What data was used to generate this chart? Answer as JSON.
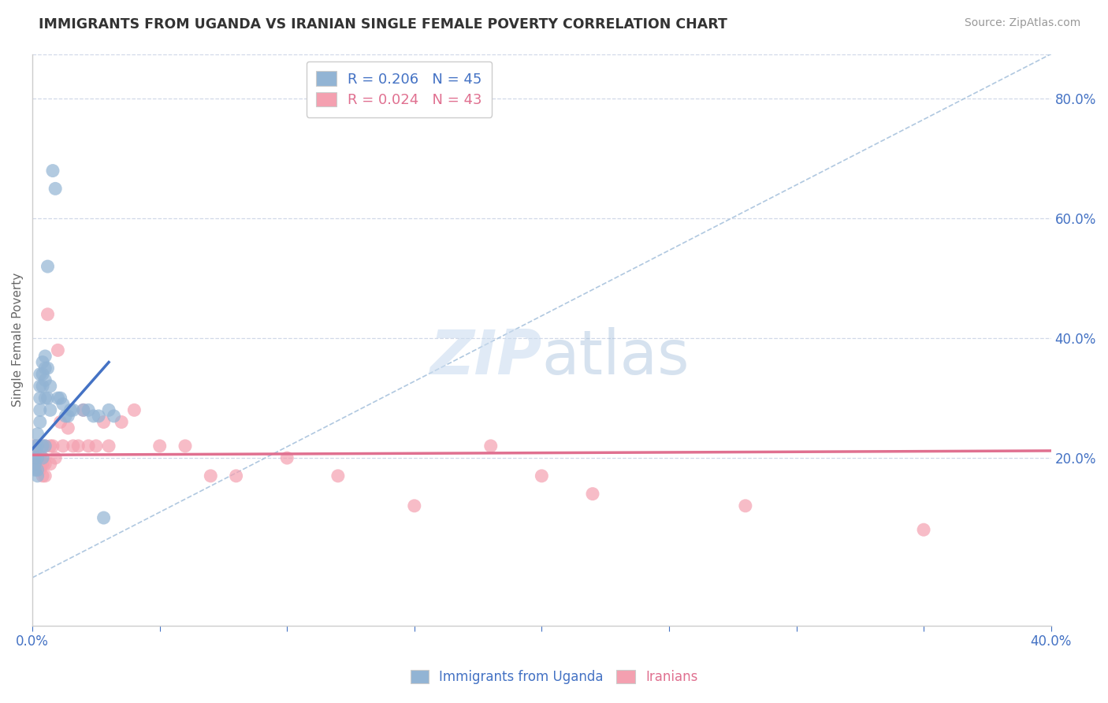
{
  "title": "IMMIGRANTS FROM UGANDA VS IRANIAN SINGLE FEMALE POVERTY CORRELATION CHART",
  "source": "Source: ZipAtlas.com",
  "ylabel": "Single Female Poverty",
  "legend_blue_label": "R = 0.206   N = 45",
  "legend_pink_label": "R = 0.024   N = 43",
  "blue_color": "#92b4d4",
  "pink_color": "#f4a0b0",
  "blue_line_color": "#4472c4",
  "pink_line_color": "#e07090",
  "dashed_line_color": "#b0c8e0",
  "legend_x_label": "Immigrants from Uganda",
  "legend_p_label": "Iranians",
  "blue_scatter_x": [
    0.001,
    0.001,
    0.001,
    0.001,
    0.002,
    0.002,
    0.002,
    0.002,
    0.002,
    0.003,
    0.003,
    0.003,
    0.003,
    0.003,
    0.004,
    0.004,
    0.004,
    0.004,
    0.004,
    0.005,
    0.005,
    0.005,
    0.005,
    0.005,
    0.006,
    0.006,
    0.006,
    0.007,
    0.007,
    0.008,
    0.009,
    0.01,
    0.011,
    0.012,
    0.013,
    0.014,
    0.015,
    0.016,
    0.02,
    0.022,
    0.024,
    0.026,
    0.028,
    0.03,
    0.032
  ],
  "blue_scatter_y": [
    0.22,
    0.2,
    0.19,
    0.18,
    0.24,
    0.22,
    0.2,
    0.18,
    0.17,
    0.34,
    0.32,
    0.3,
    0.28,
    0.26,
    0.36,
    0.34,
    0.32,
    0.22,
    0.2,
    0.37,
    0.35,
    0.33,
    0.3,
    0.22,
    0.52,
    0.35,
    0.3,
    0.32,
    0.28,
    0.68,
    0.65,
    0.3,
    0.3,
    0.29,
    0.27,
    0.27,
    0.28,
    0.28,
    0.28,
    0.28,
    0.27,
    0.27,
    0.1,
    0.28,
    0.27
  ],
  "pink_scatter_x": [
    0.001,
    0.001,
    0.002,
    0.002,
    0.003,
    0.003,
    0.003,
    0.004,
    0.004,
    0.004,
    0.005,
    0.005,
    0.005,
    0.006,
    0.007,
    0.007,
    0.008,
    0.009,
    0.01,
    0.011,
    0.012,
    0.014,
    0.016,
    0.018,
    0.02,
    0.022,
    0.025,
    0.028,
    0.03,
    0.035,
    0.04,
    0.05,
    0.06,
    0.07,
    0.08,
    0.1,
    0.12,
    0.15,
    0.18,
    0.2,
    0.22,
    0.28,
    0.35
  ],
  "pink_scatter_y": [
    0.22,
    0.2,
    0.22,
    0.19,
    0.2,
    0.19,
    0.18,
    0.2,
    0.19,
    0.17,
    0.22,
    0.19,
    0.17,
    0.44,
    0.22,
    0.19,
    0.22,
    0.2,
    0.38,
    0.26,
    0.22,
    0.25,
    0.22,
    0.22,
    0.28,
    0.22,
    0.22,
    0.26,
    0.22,
    0.26,
    0.28,
    0.22,
    0.22,
    0.17,
    0.17,
    0.2,
    0.17,
    0.12,
    0.22,
    0.17,
    0.14,
    0.12,
    0.08
  ],
  "blue_line_x": [
    0.0,
    0.03
  ],
  "blue_line_y": [
    0.215,
    0.36
  ],
  "pink_line_x": [
    0.0,
    0.4
  ],
  "pink_line_y": [
    0.205,
    0.212
  ],
  "dashed_line_x": [
    0.0,
    0.4
  ],
  "dashed_line_y": [
    0.0,
    0.875
  ],
  "grid_color": "#d0d8e8",
  "yticks_right": [
    0.2,
    0.4,
    0.6,
    0.8
  ],
  "ytick_labels_right": [
    "20.0%",
    "40.0%",
    "60.0%",
    "80.0%"
  ],
  "xticks": [
    0.0,
    0.05,
    0.1,
    0.15,
    0.2,
    0.25,
    0.3,
    0.35,
    0.4
  ],
  "xtick_labels": [
    "0.0%",
    "",
    "",
    "",
    "",
    "",
    "",
    "",
    "40.0%"
  ],
  "xlim": [
    0.0,
    0.4
  ],
  "ylim": [
    -0.08,
    0.875
  ],
  "background_color": "#ffffff"
}
